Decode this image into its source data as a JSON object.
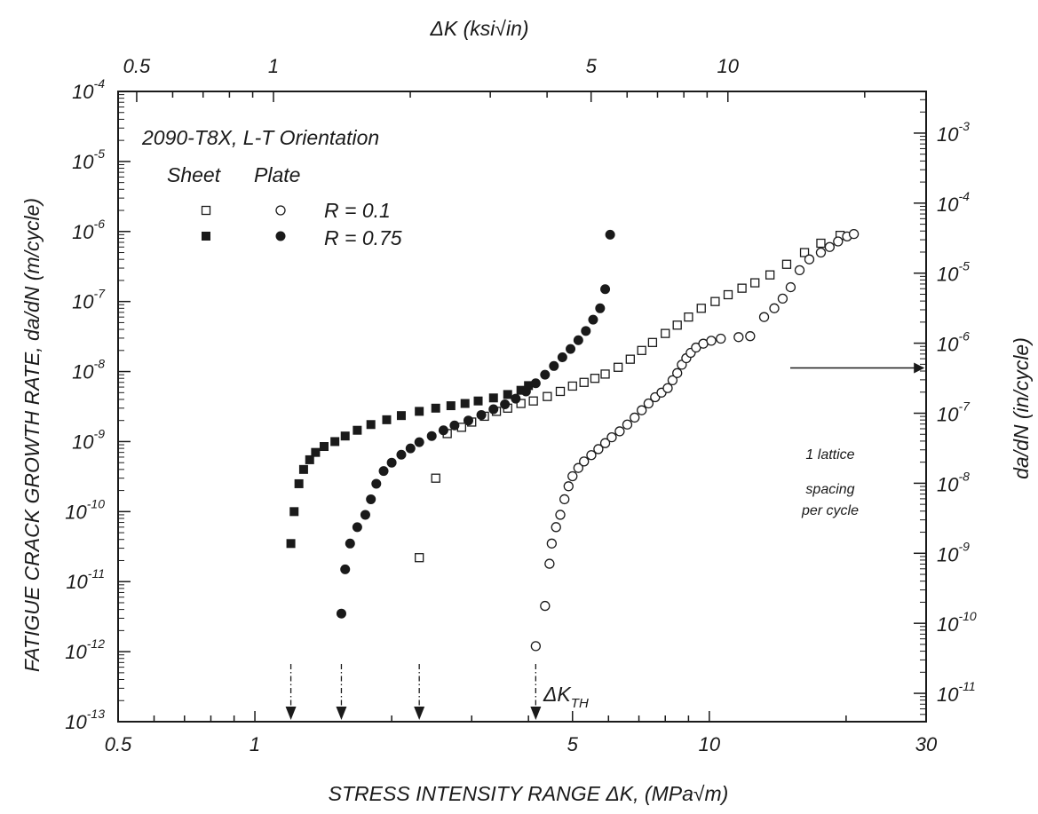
{
  "chart_data": {
    "type": "scatter",
    "title": "",
    "annotation_title": "2090-T8X, L-T Orientation",
    "legend": {
      "col_sheet": "Sheet",
      "col_plate": "Plate",
      "row1": "R = 0.1",
      "row2": "R = 0.75"
    },
    "x_axis_bottom": {
      "label": "STRESS INTENSITY RANGE ΔK, (MPa√m)",
      "scale": "log",
      "range": [
        0.5,
        30
      ],
      "tick_labels": [
        {
          "v": 0.5,
          "t": "0.5"
        },
        {
          "v": 1,
          "t": "1"
        },
        {
          "v": 5,
          "t": "5"
        },
        {
          "v": 10,
          "t": "10"
        },
        {
          "v": 30,
          "t": "30"
        }
      ]
    },
    "x_axis_top": {
      "label": "ΔK (ksi√in)",
      "scale": "log",
      "tick_labels": [
        {
          "v": 0.5,
          "t": "0.5"
        },
        {
          "v": 1,
          "t": "1"
        },
        {
          "v": 5,
          "t": "5"
        },
        {
          "v": 10,
          "t": "10"
        }
      ]
    },
    "y_axis_left": {
      "label": "FATIGUE CRACK GROWTH RATE, da/dN (m/cycle)",
      "scale": "log",
      "range": [
        1e-13,
        0.0001
      ],
      "tick_labels": [
        {
          "e": -4,
          "t": "-4"
        },
        {
          "e": -5,
          "t": "-5"
        },
        {
          "e": -6,
          "t": "-6"
        },
        {
          "e": -7,
          "t": "-7"
        },
        {
          "e": -8,
          "t": "-8"
        },
        {
          "e": -9,
          "t": "-9"
        },
        {
          "e": -10,
          "t": "-10"
        },
        {
          "e": -11,
          "t": "-11"
        },
        {
          "e": -12,
          "t": "-12"
        },
        {
          "e": -13,
          "t": "-13"
        }
      ],
      "base": "10"
    },
    "y_axis_right": {
      "label": "da/dN (in/cycle)",
      "scale": "log",
      "tick_labels": [
        {
          "e": -3,
          "t": "-3"
        },
        {
          "e": -4,
          "t": "-4"
        },
        {
          "e": -5,
          "t": "-5"
        },
        {
          "e": -6,
          "t": "-6"
        },
        {
          "e": -7,
          "t": "-7"
        },
        {
          "e": -8,
          "t": "-8"
        },
        {
          "e": -9,
          "t": "-9"
        },
        {
          "e": -10,
          "t": "-10"
        },
        {
          "e": -11,
          "t": "-11"
        }
      ],
      "base": "10"
    },
    "threshold_label": "ΔK",
    "threshold_sub": "TH",
    "thresholds": [
      1.2,
      1.55,
      2.3,
      4.15
    ],
    "lattice_note": [
      "1 lattice",
      "spacing",
      "per cycle"
    ],
    "lattice_value": 1e-08,
    "series": [
      {
        "product": "Sheet",
        "R": "R = 0.1",
        "marker": "square-open",
        "points": [
          [
            2.3,
            2.2e-11
          ],
          [
            2.5,
            3e-10
          ],
          [
            2.65,
            1.3e-09
          ],
          [
            2.85,
            1.6e-09
          ],
          [
            3.0,
            1.9e-09
          ],
          [
            3.2,
            2.3e-09
          ],
          [
            3.4,
            2.7e-09
          ],
          [
            3.6,
            3e-09
          ],
          [
            3.85,
            3.5e-09
          ],
          [
            4.1,
            3.8e-09
          ],
          [
            4.4,
            4.4e-09
          ],
          [
            4.7,
            5.2e-09
          ],
          [
            5.0,
            6.2e-09
          ],
          [
            5.3,
            7e-09
          ],
          [
            5.6,
            8e-09
          ],
          [
            5.9,
            9.2e-09
          ],
          [
            6.3,
            1.15e-08
          ],
          [
            6.7,
            1.5e-08
          ],
          [
            7.1,
            2e-08
          ],
          [
            7.5,
            2.6e-08
          ],
          [
            8.0,
            3.5e-08
          ],
          [
            8.5,
            4.6e-08
          ],
          [
            9.0,
            6e-08
          ],
          [
            9.6,
            8e-08
          ],
          [
            10.3,
            1e-07
          ],
          [
            11.0,
            1.25e-07
          ],
          [
            11.8,
            1.55e-07
          ],
          [
            12.6,
            1.85e-07
          ],
          [
            13.6,
            2.4e-07
          ],
          [
            14.8,
            3.4e-07
          ],
          [
            16.2,
            5e-07
          ],
          [
            17.6,
            6.8e-07
          ],
          [
            19.4,
            8.8e-07
          ]
        ]
      },
      {
        "product": "Plate",
        "R": "R = 0.1",
        "marker": "circle-open",
        "points": [
          [
            4.15,
            1.2e-12
          ],
          [
            4.35,
            4.5e-12
          ],
          [
            4.45,
            1.8e-11
          ],
          [
            4.5,
            3.5e-11
          ],
          [
            4.6,
            6e-11
          ],
          [
            4.7,
            9e-11
          ],
          [
            4.8,
            1.5e-10
          ],
          [
            4.9,
            2.3e-10
          ],
          [
            5.0,
            3.2e-10
          ],
          [
            5.15,
            4.2e-10
          ],
          [
            5.3,
            5.2e-10
          ],
          [
            5.5,
            6.4e-10
          ],
          [
            5.7,
            7.8e-10
          ],
          [
            5.9,
            9.5e-10
          ],
          [
            6.1,
            1.15e-09
          ],
          [
            6.35,
            1.4e-09
          ],
          [
            6.6,
            1.75e-09
          ],
          [
            6.85,
            2.2e-09
          ],
          [
            7.1,
            2.8e-09
          ],
          [
            7.35,
            3.5e-09
          ],
          [
            7.6,
            4.3e-09
          ],
          [
            7.85,
            5e-09
          ],
          [
            8.1,
            5.8e-09
          ],
          [
            8.3,
            7.5e-09
          ],
          [
            8.5,
            9.5e-09
          ],
          [
            8.7,
            1.25e-08
          ],
          [
            8.9,
            1.55e-08
          ],
          [
            9.1,
            1.85e-08
          ],
          [
            9.35,
            2.2e-08
          ],
          [
            9.7,
            2.5e-08
          ],
          [
            10.1,
            2.75e-08
          ],
          [
            10.6,
            2.95e-08
          ],
          [
            11.6,
            3.1e-08
          ],
          [
            12.3,
            3.2e-08
          ],
          [
            13.2,
            6e-08
          ],
          [
            13.9,
            8e-08
          ],
          [
            14.5,
            1.1e-07
          ],
          [
            15.1,
            1.6e-07
          ],
          [
            15.8,
            2.8e-07
          ],
          [
            16.6,
            4e-07
          ],
          [
            17.6,
            5e-07
          ],
          [
            18.4,
            6e-07
          ],
          [
            19.2,
            7.2e-07
          ],
          [
            20.1,
            8.5e-07
          ],
          [
            20.8,
            9.2e-07
          ]
        ]
      },
      {
        "product": "Sheet",
        "R": "R = 0.75",
        "marker": "square-filled",
        "points": [
          [
            1.2,
            3.5e-11
          ],
          [
            1.22,
            1e-10
          ],
          [
            1.25,
            2.5e-10
          ],
          [
            1.28,
            4e-10
          ],
          [
            1.32,
            5.5e-10
          ],
          [
            1.36,
            7e-10
          ],
          [
            1.42,
            8.5e-10
          ],
          [
            1.5,
            1e-09
          ],
          [
            1.58,
            1.2e-09
          ],
          [
            1.68,
            1.45e-09
          ],
          [
            1.8,
            1.75e-09
          ],
          [
            1.95,
            2.05e-09
          ],
          [
            2.1,
            2.35e-09
          ],
          [
            2.3,
            2.7e-09
          ],
          [
            2.5,
            3e-09
          ],
          [
            2.7,
            3.25e-09
          ],
          [
            2.9,
            3.5e-09
          ],
          [
            3.1,
            3.8e-09
          ],
          [
            3.35,
            4.2e-09
          ],
          [
            3.6,
            4.7e-09
          ],
          [
            3.85,
            5.4e-09
          ],
          [
            4.0,
            6.3e-09
          ]
        ]
      },
      {
        "product": "Plate",
        "R": "R = 0.75",
        "marker": "circle-filled",
        "points": [
          [
            1.55,
            3.5e-12
          ],
          [
            1.58,
            1.5e-11
          ],
          [
            1.62,
            3.5e-11
          ],
          [
            1.68,
            6e-11
          ],
          [
            1.75,
            9e-11
          ],
          [
            1.8,
            1.5e-10
          ],
          [
            1.85,
            2.5e-10
          ],
          [
            1.92,
            3.8e-10
          ],
          [
            2.0,
            5e-10
          ],
          [
            2.1,
            6.5e-10
          ],
          [
            2.2,
            8e-10
          ],
          [
            2.3,
            9.8e-10
          ],
          [
            2.45,
            1.2e-09
          ],
          [
            2.6,
            1.45e-09
          ],
          [
            2.75,
            1.7e-09
          ],
          [
            2.95,
            2e-09
          ],
          [
            3.15,
            2.4e-09
          ],
          [
            3.35,
            2.9e-09
          ],
          [
            3.55,
            3.4e-09
          ],
          [
            3.75,
            4.1e-09
          ],
          [
            3.95,
            5.2e-09
          ],
          [
            4.15,
            6.8e-09
          ],
          [
            4.35,
            9e-09
          ],
          [
            4.55,
            1.2e-08
          ],
          [
            4.75,
            1.6e-08
          ],
          [
            4.95,
            2.1e-08
          ],
          [
            5.15,
            2.8e-08
          ],
          [
            5.35,
            3.8e-08
          ],
          [
            5.55,
            5.5e-08
          ],
          [
            5.75,
            8e-08
          ],
          [
            5.9,
            1.5e-07
          ],
          [
            6.05,
            9e-07
          ]
        ]
      }
    ],
    "grid": false,
    "legend_placement": "top-left"
  }
}
